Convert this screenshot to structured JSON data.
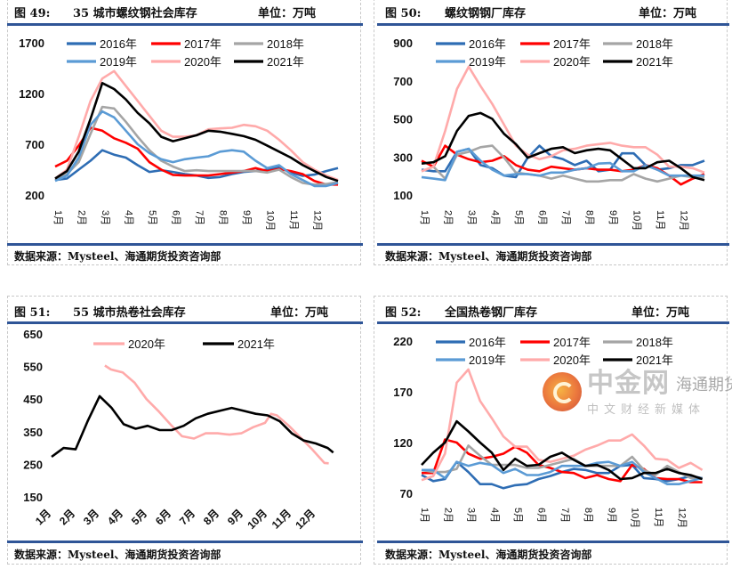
{
  "figures": [
    {
      "title_no": "图 49:",
      "title": "35 城市螺纹钢社会库存",
      "unit": "单位：万吨",
      "source": "数据来源：Mysteel、海通期货投资咨询部"
    },
    {
      "title_no": "图 50:",
      "title": "螺纹钢钢厂库存",
      "unit": "单位：万吨",
      "source": "数据来源：Mysteel、海通期货投资咨询部"
    },
    {
      "title_no": "图 51:",
      "title": "55 城市热卷社会库存",
      "unit": "单位：万吨",
      "source": "数据来源：Mysteel、海通期货投资咨询部"
    },
    {
      "title_no": "图 52:",
      "title": "全国热卷钢厂库存",
      "unit": "单位：万吨",
      "source": "数据来源：Mysteel、海通期货投资咨询部"
    }
  ],
  "watermark": {
    "logo_text": "中金网",
    "sub_text": "中文财经新媒体",
    "overlay_text": "海通期货"
  },
  "colors": {
    "2016年": "#2e6db4",
    "2017年": "#ff0000",
    "2018年": "#a5a5a5",
    "2019年": "#5b9bd5",
    "2020年": "#ffaaaa",
    "2021年": "#000000"
  },
  "chart_data": [
    {
      "type": "line",
      "title": "35 城市螺纹钢社会库存",
      "ylim": [
        200,
        1700
      ],
      "yticks": [
        200,
        700,
        1200,
        1700
      ],
      "xticks": [
        "1月",
        "2月",
        "3月",
        "4月",
        "5月",
        "6月",
        "7月",
        "8月",
        "9月",
        "10月",
        "11月",
        "12月"
      ],
      "x": [
        1,
        1.5,
        2,
        2.5,
        3,
        3.5,
        4,
        4.5,
        5,
        5.5,
        6,
        6.5,
        7,
        7.5,
        8,
        8.5,
        9,
        9.5,
        10,
        10.5,
        11,
        11.5,
        12,
        12.5,
        13
      ],
      "legend": "top",
      "series": [
        {
          "name": "2016年",
          "values": [
            347,
            362,
            450,
            538,
            641,
            597,
            568,
            494,
            427,
            444,
            427,
            406,
            392,
            368,
            377,
            406,
            427,
            436,
            450,
            474,
            421,
            389,
            401,
            436,
            465
          ]
        },
        {
          "name": "2017年",
          "values": [
            480,
            538,
            686,
            862,
            833,
            759,
            715,
            656,
            524,
            450,
            398,
            392,
            392,
            392,
            406,
            421,
            436,
            465,
            436,
            456,
            436,
            406,
            339,
            303,
            303
          ]
        },
        {
          "name": "2018年",
          "values": [
            347,
            406,
            524,
            803,
            1068,
            1053,
            921,
            774,
            641,
            538,
            480,
            436,
            444,
            436,
            436,
            436,
            436,
            436,
            421,
            450,
            377,
            318,
            303,
            309,
            327
          ]
        },
        {
          "name": "2019年",
          "values": [
            339,
            392,
            568,
            891,
            1024,
            965,
            833,
            700,
            612,
            553,
            524,
            553,
            568,
            582,
            627,
            641,
            627,
            538,
            465,
            494,
            406,
            347,
            289,
            289,
            318
          ]
        },
        {
          "name": "2020年",
          "values": [
            362,
            450,
            774,
            1127,
            1347,
            1421,
            1274,
            1127,
            980,
            833,
            774,
            774,
            789,
            847,
            856,
            862,
            891,
            877,
            833,
            744,
            641,
            524,
            450,
            392,
            348
          ]
        },
        {
          "name": "2021年",
          "values": [
            362,
            436,
            627,
            950,
            1303,
            1244,
            1141,
            1009,
            906,
            774,
            730,
            759,
            789,
            833,
            824,
            803,
            780,
            744,
            686,
            627,
            568,
            495,
            436,
            377,
            339
          ]
        }
      ]
    },
    {
      "type": "line",
      "title": "螺纹钢钢厂库存",
      "ylim": [
        100,
        900
      ],
      "yticks": [
        100,
        300,
        500,
        700,
        900
      ],
      "xticks": [
        "1月",
        "2月",
        "3月",
        "4月",
        "5月",
        "6月",
        "7月",
        "8月",
        "9月",
        "10月",
        "11月",
        "12月"
      ],
      "x": [
        1,
        1.5,
        2,
        2.5,
        3,
        3.5,
        4,
        4.5,
        5,
        5.5,
        6,
        6.5,
        7,
        7.5,
        8,
        8.5,
        9,
        9.5,
        10,
        10.5,
        11,
        11.5,
        12,
        12.5,
        13
      ],
      "legend": "top",
      "series": [
        {
          "name": "2016年",
          "values": [
            233,
            225,
            225,
            327,
            343,
            257,
            241,
            202,
            194,
            296,
            359,
            304,
            288,
            257,
            280,
            225,
            233,
            319,
            319,
            257,
            233,
            241,
            257,
            257,
            280
          ]
        },
        {
          "name": "2017年",
          "values": [
            280,
            249,
            359,
            312,
            288,
            272,
            280,
            304,
            257,
            233,
            225,
            249,
            241,
            233,
            241,
            233,
            233,
            225,
            233,
            257,
            241,
            202,
            155,
            186,
            210
          ]
        },
        {
          "name": "2018年",
          "values": [
            225,
            249,
            186,
            312,
            327,
            351,
            359,
            296,
            218,
            210,
            202,
            186,
            202,
            186,
            171,
            171,
            178,
            178,
            210,
            186,
            171,
            186,
            202,
            194,
            194
          ]
        },
        {
          "name": "2019年",
          "values": [
            194,
            186,
            178,
            327,
            343,
            280,
            233,
            202,
            210,
            210,
            202,
            218,
            218,
            233,
            241,
            265,
            268,
            225,
            225,
            257,
            233,
            202,
            202,
            202,
            202
          ]
        },
        {
          "name": "2020年",
          "values": [
            225,
            249,
            437,
            657,
            774,
            672,
            578,
            469,
            359,
            312,
            288,
            304,
            335,
            343,
            359,
            367,
            374,
            359,
            351,
            351,
            312,
            249,
            249,
            241,
            218
          ]
        },
        {
          "name": "2021年",
          "values": [
            265,
            272,
            304,
            437,
            516,
            531,
            500,
            421,
            367,
            296,
            320,
            343,
            351,
            320,
            335,
            343,
            335,
            288,
            241,
            241,
            272,
            280,
            241,
            194,
            178
          ]
        }
      ]
    },
    {
      "type": "line",
      "title": "55 城市热卷社会库存",
      "ylim": [
        150,
        650
      ],
      "yticks": [
        150,
        250,
        350,
        450,
        550,
        650
      ],
      "xticks": [
        "1月",
        "2月",
        "3月",
        "4月",
        "5月",
        "6月",
        "7月",
        "8月",
        "9月",
        "10月",
        "11月",
        "12月"
      ],
      "legend": "top",
      "series": [
        {
          "name": "2020年",
          "x": [
            3.22,
            3.47,
            3.96,
            4.46,
            4.95,
            5.44,
            5.94,
            6.43,
            6.93,
            7.42,
            7.91,
            8.41,
            8.9,
            9.4,
            9.89,
            10.14,
            10.38,
            10.88,
            11.37,
            11.86,
            12.36,
            12.54
          ],
          "values": [
            553,
            541,
            532,
            500,
            450,
            414,
            373,
            336,
            329,
            345,
            345,
            341,
            345,
            364,
            377,
            405,
            400,
            368,
            332,
            295,
            254,
            253
          ]
        },
        {
          "name": "2021年",
          "x": [
            1,
            1.5,
            2,
            2.5,
            3,
            3.5,
            4,
            4.5,
            5,
            5.5,
            6,
            6.5,
            7,
            7.5,
            8,
            8.5,
            9,
            9.5,
            10,
            10.5,
            11,
            11.5,
            12,
            12.5,
            12.73
          ],
          "values": [
            273,
            300,
            296,
            382,
            459,
            423,
            373,
            359,
            368,
            355,
            355,
            368,
            391,
            405,
            414,
            423,
            414,
            405,
            400,
            382,
            345,
            323,
            314,
            300,
            286
          ]
        }
      ]
    },
    {
      "type": "line",
      "title": "全国热卷钢厂库存",
      "ylim": [
        70,
        220
      ],
      "yticks": [
        70,
        120,
        170,
        220
      ],
      "xticks": [
        "1月",
        "2月",
        "3月",
        "4月",
        "5月",
        "6月",
        "7月",
        "8月",
        "9月",
        "10月",
        "11月",
        "12月"
      ],
      "x": [
        1,
        1.5,
        2,
        2.5,
        3,
        3.5,
        4,
        4.5,
        5,
        5.5,
        6,
        6.5,
        7,
        7.5,
        8,
        8.5,
        9,
        9.5,
        10,
        10.5,
        11,
        11.5,
        12,
        12.5,
        13
      ],
      "legend": "top",
      "series": [
        {
          "name": "2016年",
          "values": [
            88,
            82,
            84,
            101,
            91,
            79,
            79,
            75,
            78,
            79,
            84,
            87,
            91,
            94,
            93,
            90,
            90,
            97,
            98,
            85,
            84,
            82,
            84,
            87,
            85
          ]
        },
        {
          "name": "2017年",
          "values": [
            90,
            90,
            123,
            120,
            109,
            104,
            106,
            109,
            116,
            110,
            98,
            95,
            91,
            90,
            85,
            88,
            84,
            82,
            98,
            94,
            85,
            84,
            84,
            81,
            81
          ]
        },
        {
          "name": "2018年",
          "values": [
            93,
            91,
            91,
            94,
            117,
            107,
            98,
            98,
            98,
            95,
            95,
            98,
            101,
            104,
            97,
            97,
            97,
            97,
            106,
            93,
            88,
            97,
            91,
            85,
            85
          ]
        },
        {
          "name": "2019年",
          "values": [
            93,
            93,
            85,
            101,
            97,
            100,
            98,
            90,
            94,
            88,
            88,
            91,
            97,
            97,
            97,
            100,
            101,
            97,
            101,
            91,
            85,
            79,
            79,
            82,
            85
          ]
        },
        {
          "name": "2020年",
          "values": [
            83,
            87,
            109,
            179,
            192,
            161,
            144,
            126,
            116,
            116,
            103,
            101,
            104,
            107,
            113,
            117,
            122,
            122,
            128,
            117,
            104,
            103,
            95,
            100,
            93
          ]
        },
        {
          "name": "2021年",
          "values": [
            98,
            110,
            120,
            141,
            131,
            120,
            110,
            93,
            104,
            97,
            98,
            106,
            110,
            103,
            97,
            98,
            93,
            84,
            85,
            90,
            90,
            94,
            90,
            88,
            84
          ]
        }
      ]
    }
  ]
}
